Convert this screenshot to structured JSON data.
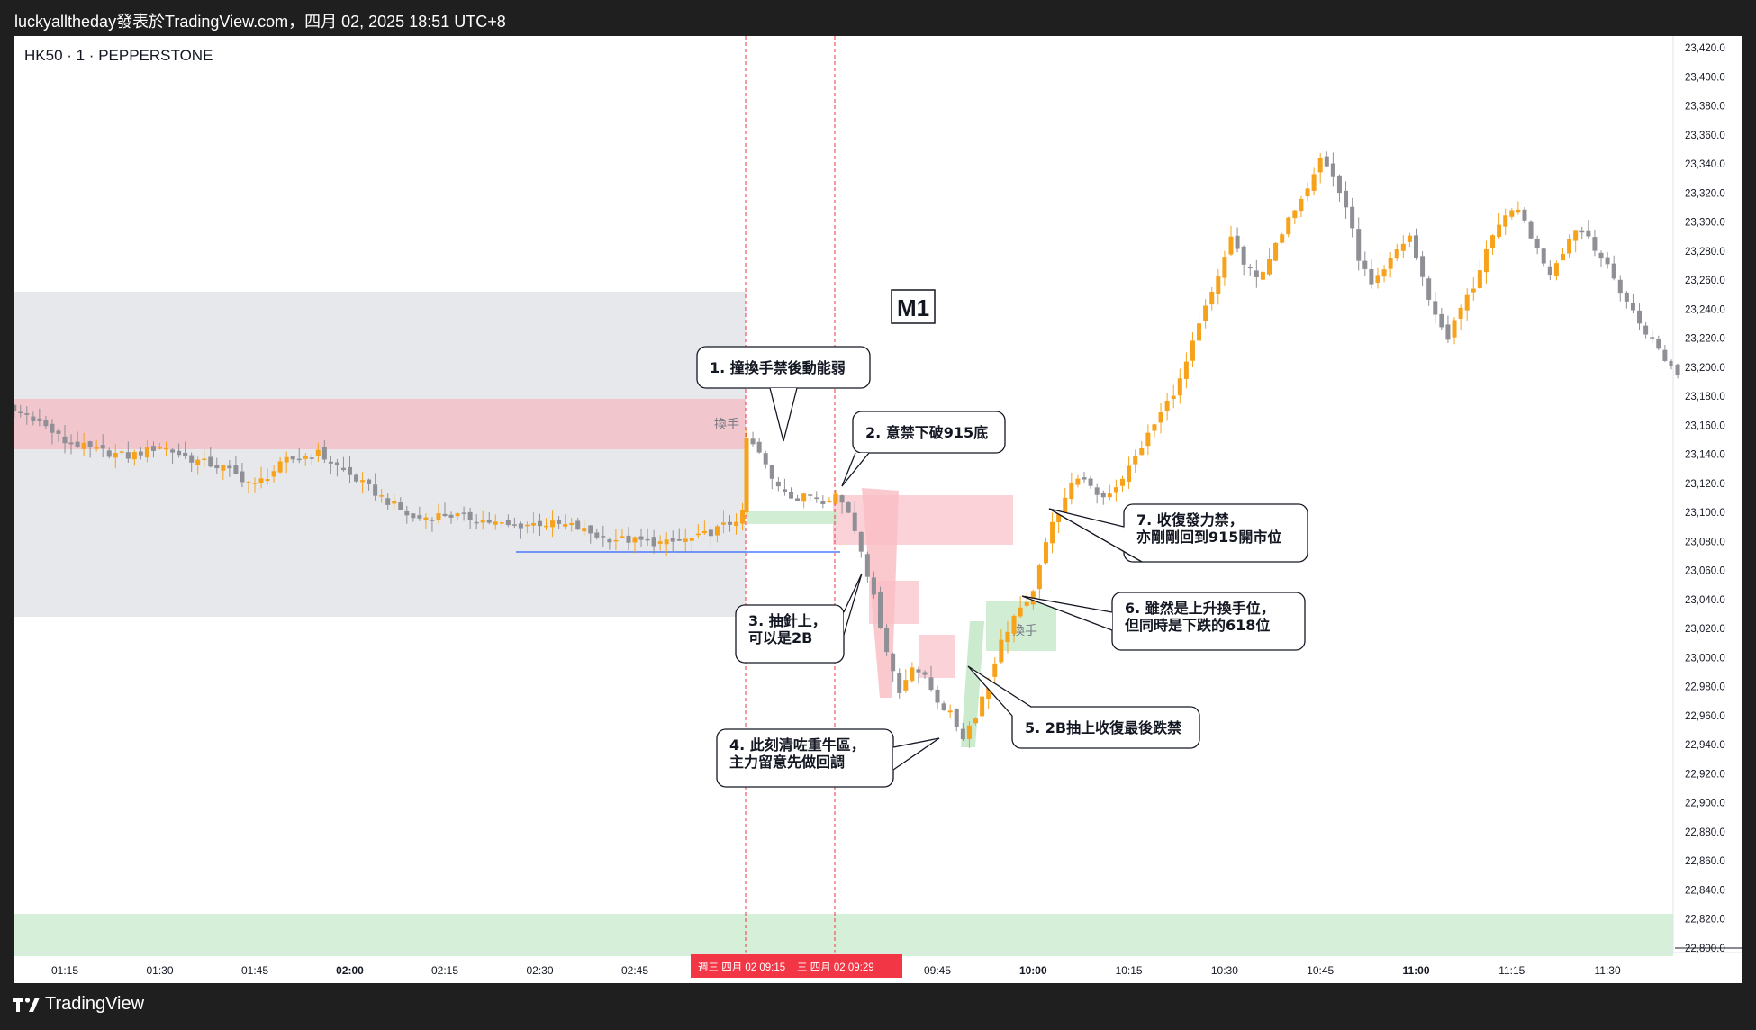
{
  "header": {
    "publish_line": "luckyalltheday發表於TradingView.com，四月 02, 2025 18:51 UTC+8"
  },
  "symbol_line": "HK50 · 1 · PEPPERSTONE",
  "footer": {
    "brand": "TradingView"
  },
  "colors": {
    "up": "#f7a21b",
    "down": "#8f8f96",
    "range_zone": "#e6e8eb",
    "resistance_zone": "#f1c6cc",
    "support_zone": "#d6efd8",
    "pink_box": "#f9bfc6",
    "green_box": "#c6e8c9",
    "date_marker": "#f23645"
  },
  "chart_data": {
    "type": "candlestick",
    "title": "",
    "timeframe": "1",
    "xlabel": "",
    "ylabel": "",
    "ylim": [
      22790,
      23430
    ],
    "x_ticks": [
      "01:15",
      "01:30",
      "01:45",
      "02:00",
      "02:15",
      "02:30",
      "02:45",
      "09:45",
      "10:00",
      "10:15",
      "10:30",
      "10:45",
      "11:00",
      "11:15",
      "11:30"
    ],
    "y_ticks": [
      "23,420.0",
      "23,400.0",
      "23,380.0",
      "23,360.0",
      "23,340.0",
      "23,320.0",
      "23,300.0",
      "23,280.0",
      "23,260.0",
      "23,240.0",
      "23,220.0",
      "23,200.0",
      "23,180.0",
      "23,160.0",
      "23,140.0",
      "23,120.0",
      "23,100.0",
      "23,080.0",
      "23,060.0",
      "23,040.0",
      "23,020.0",
      "23,000.0",
      "22,980.0",
      "22,960.0",
      "22,940.0",
      "22,920.0",
      "22,900.0",
      "22,880.0",
      "22,860.0",
      "22,840.0",
      "22,820.0",
      "22,800.0"
    ],
    "date_markers": [
      "週三 四月 02  09:15",
      "三 四月 02  09:29"
    ],
    "chart_label": "M1",
    "zone_label": "換手",
    "price_path": [
      [
        "01:00",
        23170
      ],
      [
        "01:05",
        23172
      ],
      [
        "01:10",
        23165
      ],
      [
        "01:15",
        23148
      ],
      [
        "01:20",
        23142
      ],
      [
        "01:25",
        23138
      ],
      [
        "01:30",
        23145
      ],
      [
        "01:35",
        23136
      ],
      [
        "01:40",
        23130
      ],
      [
        "01:45",
        23118
      ],
      [
        "01:50",
        23135
      ],
      [
        "01:55",
        23140
      ],
      [
        "02:00",
        23125
      ],
      [
        "02:05",
        23110
      ],
      [
        "02:10",
        23095
      ],
      [
        "02:15",
        23098
      ],
      [
        "02:20",
        23095
      ],
      [
        "02:25",
        23090
      ],
      [
        "02:30",
        23092
      ],
      [
        "02:35",
        23090
      ],
      [
        "02:40",
        23082
      ],
      [
        "02:45",
        23080
      ],
      [
        "02:50",
        23078
      ],
      [
        "02:55",
        23082
      ],
      [
        "03:00",
        23092
      ],
      [
        "03:02",
        23098
      ],
      [
        "09:15",
        23150
      ],
      [
        "09:17",
        23140
      ],
      [
        "09:19",
        23122
      ],
      [
        "09:21",
        23115
      ],
      [
        "09:23",
        23108
      ],
      [
        "09:25",
        23112
      ],
      [
        "09:27",
        23108
      ],
      [
        "09:29",
        23112
      ],
      [
        "09:31",
        23100
      ],
      [
        "09:33",
        23075
      ],
      [
        "09:35",
        23040
      ],
      [
        "09:37",
        23005
      ],
      [
        "09:39",
        22975
      ],
      [
        "09:41",
        22995
      ],
      [
        "09:43",
        22985
      ],
      [
        "09:45",
        22970
      ],
      [
        "09:47",
        22960
      ],
      [
        "09:49",
        22945
      ],
      [
        "09:51",
        22960
      ],
      [
        "09:53",
        22985
      ],
      [
        "09:55",
        23010
      ],
      [
        "09:57",
        23028
      ],
      [
        "09:59",
        23035
      ],
      [
        "10:01",
        23060
      ],
      [
        "10:03",
        23095
      ],
      [
        "10:05",
        23110
      ],
      [
        "10:07",
        23125
      ],
      [
        "10:09",
        23115
      ],
      [
        "10:11",
        23110
      ],
      [
        "10:13",
        23118
      ],
      [
        "10:15",
        23130
      ],
      [
        "10:17",
        23145
      ],
      [
        "10:19",
        23160
      ],
      [
        "10:21",
        23175
      ],
      [
        "10:23",
        23190
      ],
      [
        "10:25",
        23215
      ],
      [
        "10:27",
        23240
      ],
      [
        "10:29",
        23260
      ],
      [
        "10:31",
        23290
      ],
      [
        "10:33",
        23270
      ],
      [
        "10:35",
        23260
      ],
      [
        "10:37",
        23275
      ],
      [
        "10:39",
        23290
      ],
      [
        "10:41",
        23310
      ],
      [
        "10:43",
        23325
      ],
      [
        "10:45",
        23345
      ],
      [
        "10:47",
        23330
      ],
      [
        "10:49",
        23310
      ],
      [
        "10:51",
        23275
      ],
      [
        "10:53",
        23255
      ],
      [
        "10:55",
        23265
      ],
      [
        "10:57",
        23280
      ],
      [
        "10:59",
        23290
      ],
      [
        "11:01",
        23260
      ],
      [
        "11:03",
        23235
      ],
      [
        "11:05",
        23220
      ],
      [
        "11:07",
        23240
      ],
      [
        "11:09",
        23255
      ],
      [
        "11:11",
        23280
      ],
      [
        "11:13",
        23295
      ],
      [
        "11:15",
        23310
      ],
      [
        "11:17",
        23300
      ],
      [
        "11:19",
        23280
      ],
      [
        "11:21",
        23265
      ],
      [
        "11:23",
        23280
      ],
      [
        "11:25",
        23295
      ],
      [
        "11:27",
        23290
      ],
      [
        "11:29",
        23275
      ],
      [
        "11:31",
        23260
      ],
      [
        "11:33",
        23245
      ],
      [
        "11:35",
        23230
      ],
      [
        "11:37",
        23218
      ],
      [
        "11:39",
        23205
      ],
      [
        "11:41",
        23195
      ]
    ],
    "annotations": [
      {
        "id": "a1",
        "lines": [
          "1. 撞換手禁後動能弱"
        ]
      },
      {
        "id": "a2",
        "lines": [
          "2. 意禁下破915底"
        ]
      },
      {
        "id": "a3",
        "lines": [
          "3. 抽針上，",
          "可以是2B"
        ]
      },
      {
        "id": "a4",
        "lines": [
          "4. 此刻清咗重牛區，",
          "主力留意先做回調"
        ]
      },
      {
        "id": "a5",
        "lines": [
          "5. 2B抽上收復最後跌禁"
        ]
      },
      {
        "id": "a6",
        "lines": [
          "6. 雖然是上升換手位，",
          "但同時是下跌的618位"
        ]
      },
      {
        "id": "a7",
        "lines": [
          "7. 收復發力禁，",
          "亦剛剛回到915開市位"
        ]
      }
    ]
  }
}
